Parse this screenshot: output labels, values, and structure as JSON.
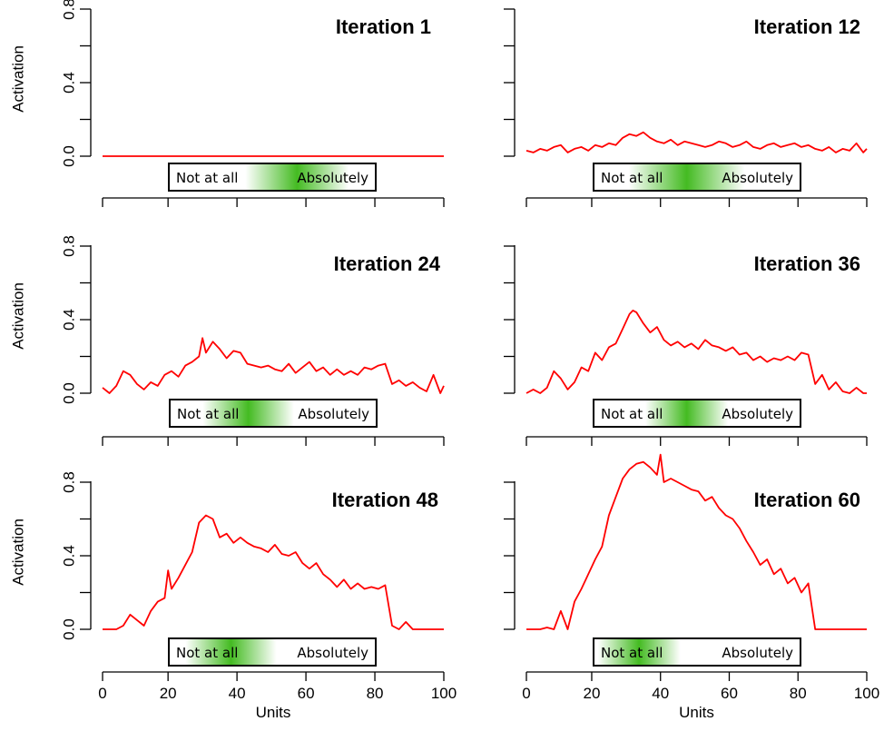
{
  "figure": {
    "ylabel": "Activation",
    "xlabel": "Units",
    "y_ticks": [
      "0.0",
      "0.4",
      "0.8"
    ],
    "x_ticks": [
      "0",
      "20",
      "40",
      "60",
      "80",
      "100"
    ],
    "line_color": "#ff0000",
    "legend_green": "#44bb22"
  },
  "chart_data": [
    {
      "type": "line",
      "title": "Iteration 1",
      "ylim": [
        0,
        1
      ],
      "xlim": [
        0,
        100
      ],
      "legend": {
        "left_label": "Not at all",
        "right_label": "Absolutely",
        "peak": 0.62,
        "width": 0.25
      },
      "x": [
        1,
        100
      ],
      "y": [
        0.0,
        0.0
      ]
    },
    {
      "type": "line",
      "title": "Iteration 12",
      "ylim": [
        0,
        1
      ],
      "xlim": [
        0,
        100
      ],
      "legend": {
        "left_label": "Not at all",
        "right_label": "Absolutely",
        "peak": 0.45,
        "width": 0.28
      },
      "x": [
        1,
        3,
        5,
        7,
        9,
        11,
        13,
        15,
        17,
        19,
        21,
        23,
        25,
        27,
        29,
        31,
        33,
        35,
        37,
        39,
        41,
        43,
        45,
        47,
        49,
        51,
        53,
        55,
        57,
        59,
        61,
        63,
        65,
        67,
        69,
        71,
        73,
        75,
        77,
        79,
        81,
        83,
        85,
        87,
        89,
        91,
        93,
        95,
        97,
        99,
        100
      ],
      "y": [
        0.03,
        0.02,
        0.04,
        0.03,
        0.05,
        0.06,
        0.02,
        0.04,
        0.05,
        0.03,
        0.06,
        0.05,
        0.07,
        0.06,
        0.1,
        0.12,
        0.11,
        0.13,
        0.1,
        0.08,
        0.07,
        0.09,
        0.06,
        0.08,
        0.07,
        0.06,
        0.05,
        0.06,
        0.08,
        0.07,
        0.05,
        0.06,
        0.08,
        0.05,
        0.04,
        0.06,
        0.07,
        0.05,
        0.06,
        0.07,
        0.05,
        0.06,
        0.04,
        0.03,
        0.05,
        0.02,
        0.04,
        0.03,
        0.07,
        0.02,
        0.04
      ]
    },
    {
      "type": "line",
      "title": "Iteration 24",
      "ylim": [
        0,
        1
      ],
      "xlim": [
        0,
        100
      ],
      "legend": {
        "left_label": "Not at all",
        "right_label": "Absolutely",
        "peak": 0.38,
        "width": 0.22
      },
      "x": [
        1,
        3,
        5,
        7,
        9,
        11,
        13,
        15,
        17,
        19,
        21,
        23,
        25,
        27,
        29,
        30,
        31,
        33,
        35,
        37,
        39,
        41,
        43,
        45,
        47,
        49,
        51,
        53,
        55,
        57,
        59,
        61,
        63,
        65,
        67,
        69,
        71,
        73,
        75,
        77,
        79,
        81,
        83,
        85,
        87,
        89,
        91,
        93,
        95,
        97,
        99,
        100
      ],
      "y": [
        0.03,
        0.0,
        0.04,
        0.12,
        0.1,
        0.05,
        0.02,
        0.06,
        0.04,
        0.1,
        0.12,
        0.09,
        0.15,
        0.17,
        0.2,
        0.3,
        0.22,
        0.28,
        0.24,
        0.19,
        0.23,
        0.22,
        0.16,
        0.15,
        0.14,
        0.15,
        0.13,
        0.12,
        0.16,
        0.11,
        0.14,
        0.17,
        0.12,
        0.14,
        0.1,
        0.13,
        0.1,
        0.12,
        0.1,
        0.14,
        0.13,
        0.15,
        0.16,
        0.05,
        0.07,
        0.04,
        0.06,
        0.03,
        0.01,
        0.1,
        0.0,
        0.04
      ]
    },
    {
      "type": "line",
      "title": "Iteration 36",
      "ylim": [
        0,
        1
      ],
      "xlim": [
        0,
        100
      ],
      "legend": {
        "left_label": "Not at all",
        "right_label": "Absolutely",
        "peak": 0.45,
        "width": 0.2
      },
      "x": [
        1,
        3,
        5,
        7,
        9,
        11,
        13,
        15,
        17,
        19,
        21,
        23,
        25,
        27,
        29,
        31,
        32,
        33,
        35,
        37,
        39,
        41,
        43,
        45,
        47,
        49,
        51,
        53,
        55,
        57,
        59,
        61,
        63,
        65,
        67,
        69,
        71,
        73,
        75,
        77,
        79,
        81,
        83,
        85,
        87,
        89,
        91,
        93,
        95,
        97,
        99,
        100
      ],
      "y": [
        0.0,
        0.02,
        0.0,
        0.03,
        0.12,
        0.08,
        0.02,
        0.06,
        0.14,
        0.12,
        0.22,
        0.18,
        0.25,
        0.27,
        0.35,
        0.43,
        0.45,
        0.44,
        0.38,
        0.33,
        0.36,
        0.29,
        0.26,
        0.28,
        0.25,
        0.27,
        0.24,
        0.29,
        0.26,
        0.25,
        0.23,
        0.25,
        0.21,
        0.22,
        0.18,
        0.2,
        0.17,
        0.19,
        0.18,
        0.2,
        0.18,
        0.22,
        0.21,
        0.05,
        0.1,
        0.02,
        0.06,
        0.01,
        0.0,
        0.03,
        0.0,
        0.0
      ]
    },
    {
      "type": "line",
      "title": "Iteration 48",
      "ylim": [
        0,
        1
      ],
      "xlim": [
        0,
        100
      ],
      "legend": {
        "left_label": "Not at all",
        "right_label": "Absolutely",
        "peak": 0.3,
        "width": 0.22
      },
      "x": [
        1,
        3,
        5,
        7,
        9,
        11,
        13,
        15,
        17,
        19,
        20,
        21,
        23,
        25,
        27,
        29,
        31,
        33,
        35,
        37,
        39,
        41,
        43,
        45,
        47,
        49,
        51,
        53,
        55,
        57,
        59,
        61,
        63,
        65,
        67,
        69,
        71,
        73,
        75,
        77,
        79,
        81,
        83,
        85,
        87,
        89,
        91,
        93,
        95,
        97,
        99,
        100
      ],
      "y": [
        0.0,
        0.0,
        0.0,
        0.02,
        0.08,
        0.05,
        0.02,
        0.1,
        0.15,
        0.17,
        0.32,
        0.22,
        0.28,
        0.35,
        0.42,
        0.58,
        0.62,
        0.6,
        0.5,
        0.52,
        0.47,
        0.5,
        0.47,
        0.45,
        0.44,
        0.42,
        0.46,
        0.41,
        0.4,
        0.42,
        0.36,
        0.33,
        0.36,
        0.3,
        0.27,
        0.23,
        0.27,
        0.22,
        0.25,
        0.22,
        0.23,
        0.22,
        0.24,
        0.02,
        0.0,
        0.04,
        0.0,
        0.0,
        0.0,
        0.0,
        0.0,
        0.0
      ]
    },
    {
      "type": "line",
      "title": "Iteration 60",
      "ylim": [
        0,
        1
      ],
      "xlim": [
        0,
        100
      ],
      "legend": {
        "left_label": "Not at all",
        "right_label": "Absolutely",
        "peak": 0.22,
        "width": 0.2
      },
      "x": [
        1,
        3,
        5,
        7,
        9,
        11,
        13,
        15,
        17,
        19,
        21,
        23,
        25,
        27,
        29,
        31,
        33,
        35,
        37,
        39,
        40,
        41,
        43,
        45,
        47,
        49,
        51,
        53,
        55,
        57,
        59,
        61,
        63,
        65,
        67,
        69,
        71,
        73,
        75,
        77,
        79,
        81,
        83,
        85,
        87,
        89,
        91,
        93,
        95,
        97,
        99,
        100
      ],
      "y": [
        0.0,
        0.0,
        0.0,
        0.01,
        0.0,
        0.1,
        0.0,
        0.15,
        0.22,
        0.3,
        0.38,
        0.45,
        0.62,
        0.72,
        0.82,
        0.87,
        0.9,
        0.91,
        0.88,
        0.84,
        0.95,
        0.8,
        0.82,
        0.8,
        0.78,
        0.76,
        0.75,
        0.7,
        0.72,
        0.66,
        0.62,
        0.6,
        0.55,
        0.48,
        0.42,
        0.35,
        0.38,
        0.3,
        0.33,
        0.25,
        0.28,
        0.2,
        0.25,
        0.0,
        0.0,
        0.0,
        0.0,
        0.0,
        0.0,
        0.0,
        0.0,
        0.0
      ]
    }
  ]
}
